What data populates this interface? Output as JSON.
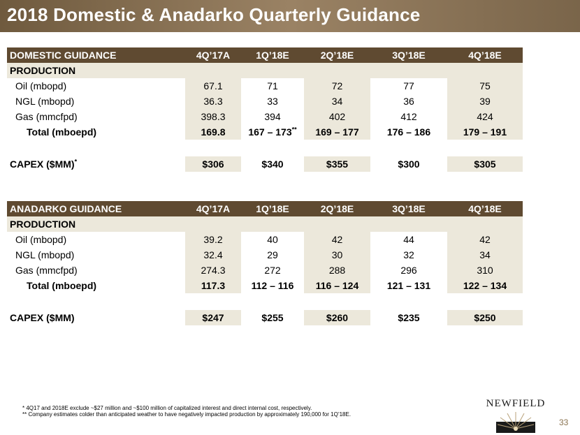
{
  "title": "2018 Domestic & Anadarko Quarterly Guidance",
  "domestic": {
    "header": [
      "DOMESTIC GUIDANCE",
      "4Q’17A",
      "1Q’18E",
      "2Q’18E",
      "3Q’18E",
      "4Q’18E"
    ],
    "section": "PRODUCTION",
    "rows": [
      {
        "label": "Oil (mbopd)",
        "values": [
          "67.1",
          "71",
          "72",
          "77",
          "75"
        ]
      },
      {
        "label": "NGL (mbopd)",
        "values": [
          "36.3",
          "33",
          "34",
          "36",
          "39"
        ]
      },
      {
        "label": "Gas (mmcfpd)",
        "values": [
          "398.3",
          "394",
          "402",
          "412",
          "424"
        ]
      }
    ],
    "total": {
      "label": "Total (mboepd)",
      "values": [
        "169.8",
        "167 – 173",
        "169 – 177",
        "176 – 186",
        "179 – 191"
      ],
      "marker": "**"
    },
    "capex": {
      "label": "CAPEX ($MM)",
      "marker": "*",
      "values": [
        "$306",
        "$340",
        "$355",
        "$300",
        "$305"
      ]
    }
  },
  "anadarko": {
    "header": [
      "ANADARKO GUIDANCE",
      "4Q’17A",
      "1Q’18E",
      "2Q’18E",
      "3Q’18E",
      "4Q’18E"
    ],
    "section": "PRODUCTION",
    "rows": [
      {
        "label": "Oil (mbopd)",
        "values": [
          "39.2",
          "40",
          "42",
          "44",
          "42"
        ]
      },
      {
        "label": "NGL (mbopd)",
        "values": [
          "32.4",
          "29",
          "30",
          "32",
          "34"
        ]
      },
      {
        "label": "Gas (mmcfpd)",
        "values": [
          "274.3",
          "272",
          "288",
          "296",
          "310"
        ]
      }
    ],
    "total": {
      "label": "Total (mboepd)",
      "values": [
        "117.3",
        "112 – 116",
        "116 – 124",
        "121 – 131",
        "122 – 134"
      ]
    },
    "capex": {
      "label": "CAPEX ($MM)",
      "values": [
        "$247",
        "$255",
        "$260",
        "$235",
        "$250"
      ]
    }
  },
  "footnotes": [
    "* 4Q17 and 2018E exclude ~$27 million and ~$100 million of capitalized interest and direct internal cost, respectively.",
    "** Company estimates colder than anticipated weather to have negatively impacted production by approximately 190,000 for 1Q’18E."
  ],
  "logo_text": "NEWFIELD",
  "page_number": "33",
  "colors": {
    "header_brown": "#5f4a31",
    "band_beige": "#ece8db",
    "accent_gold": "#8a7350"
  }
}
